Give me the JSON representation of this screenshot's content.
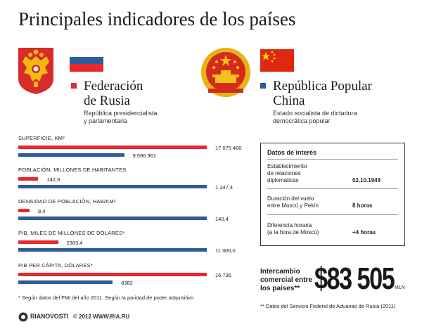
{
  "title": "Principales indicadores de los países",
  "colors": {
    "russia": "#e8282f",
    "china": "#2d5b9d"
  },
  "countries": {
    "russia": {
      "name_line1": "Federación",
      "name_line2": "de Rusia",
      "subtitle_line1": "República presidencialista",
      "subtitle_line2": "y parlamentaria"
    },
    "china": {
      "name_line1": "República Popular",
      "name_line2": "China",
      "subtitle_line1": "Estado socialista de dictadura",
      "subtitle_line2": "democrática popular"
    }
  },
  "chart_data": {
    "type": "bar",
    "orientation": "horizontal",
    "series_names": [
      "Federación de Rusia",
      "República Popular China"
    ],
    "indicators": [
      {
        "label": "SUPERFICIE, KM²",
        "russia": 17075400,
        "china": 9596961,
        "russia_label": "17 075 400",
        "china_label": "9 596 961"
      },
      {
        "label": "POBLACIÓN, MILLONES DE HABITANTES",
        "russia": 142.9,
        "china": 1347.4,
        "russia_label": "142,9",
        "china_label": "1 347,4"
      },
      {
        "label": "DENSIDAD DE POBLACIÓN, HAB/KM²",
        "russia": 8.4,
        "china": 140.4,
        "russia_label": "8,4",
        "china_label": "140,4"
      },
      {
        "label": "PIB, MILES DE MILLONES DE DÓLARES*",
        "russia": 2383.4,
        "china": 11300,
        "russia_label": "2383,4",
        "china_label": "11 300,0"
      },
      {
        "label": "PIB PER CÁPITA, DÓLARES*",
        "russia": 16736,
        "china": 8382,
        "russia_label": "16 736",
        "china_label": "8382"
      }
    ]
  },
  "footnote1": "* Según datos del FMI del año 2011. Según la paridad de poder adquisitivo",
  "interest": {
    "title": "Datos de interés",
    "rows": [
      {
        "label_lines": [
          "Establecimiento",
          "de relaciones",
          "diplomáticas"
        ],
        "value": "02.10.1949"
      },
      {
        "label_lines": [
          "Duración del vuelo",
          "entre Moscú y Pekín"
        ],
        "value": "8 horas"
      },
      {
        "label_lines": [
          "Diferencia horaria",
          "(a la hora de Moscú)"
        ],
        "value": "+4 horas"
      }
    ]
  },
  "trade": {
    "label_lines": [
      "Intercambio",
      "comercial entre",
      "los países**"
    ],
    "value": "$83 505",
    "unit": "MLN"
  },
  "footnote2": "** Datos del Servicio Federal de Aduanas de Rusia (2011)",
  "branding": {
    "logo_text": "RIANOVOSTI",
    "copyright": "© 2012 WWW.RIA.RU"
  }
}
